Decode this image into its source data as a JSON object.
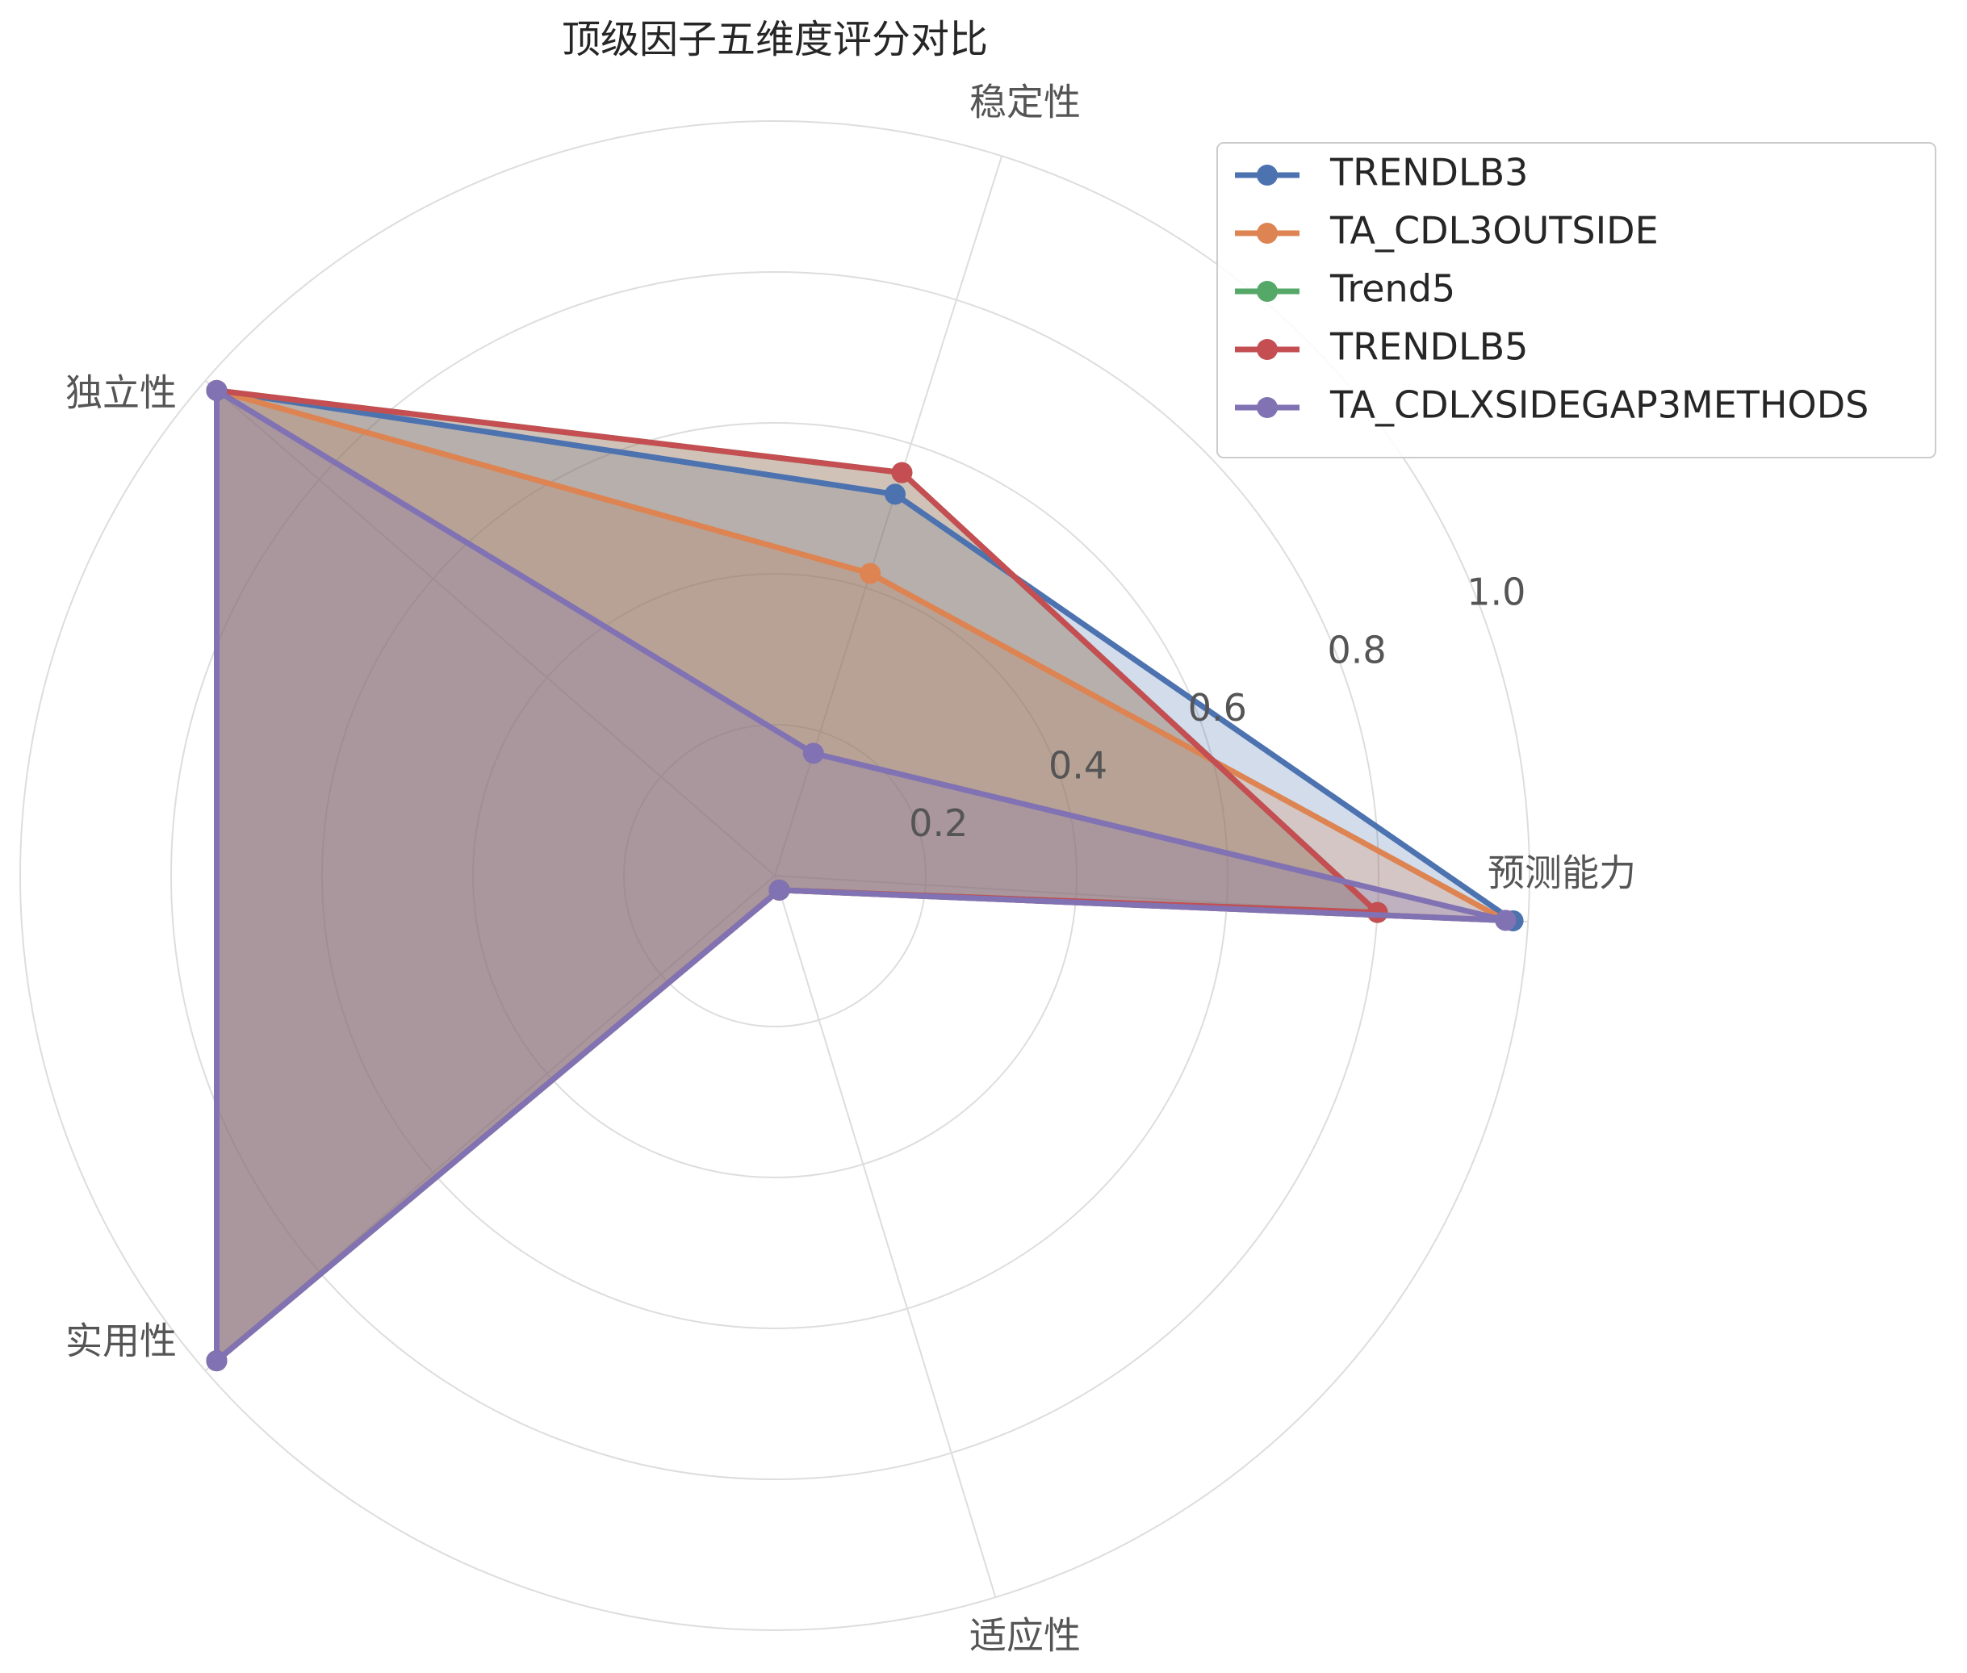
{
  "chart_data": {
    "type": "radar",
    "title": "顶级因子五维度评分对比",
    "axes": [
      "预测能力",
      "稳定性",
      "独立性",
      "实用性",
      "适应性"
    ],
    "rlim": [
      0,
      1.0
    ],
    "ticks": [
      0.2,
      0.4,
      0.6,
      0.8,
      1.0
    ],
    "tick_labels": [
      "0.2",
      "0.4",
      "0.6",
      "0.8",
      "1.0"
    ],
    "grid": true,
    "legend_position": "top-right",
    "series": [
      {
        "name": "TRENDLB3",
        "color": "#4c72b0",
        "values": [
          0.98,
          0.53,
          0.98,
          0.98,
          0.02
        ]
      },
      {
        "name": "TA_CDL3OUTSIDE",
        "color": "#dd8452",
        "values": [
          0.97,
          0.42,
          0.98,
          0.98,
          0.02
        ]
      },
      {
        "name": "Trend5",
        "color": "#55a868",
        "values": [
          0.8,
          0.56,
          0.98,
          0.98,
          0.02
        ]
      },
      {
        "name": "TRENDLB5",
        "color": "#c44e52",
        "values": [
          0.8,
          0.56,
          0.98,
          0.98,
          0.02
        ]
      },
      {
        "name": "TA_CDLXSIDEGAP3METHODS",
        "color": "#8172b3",
        "values": [
          0.97,
          0.17,
          0.98,
          0.98,
          0.02
        ]
      }
    ]
  }
}
